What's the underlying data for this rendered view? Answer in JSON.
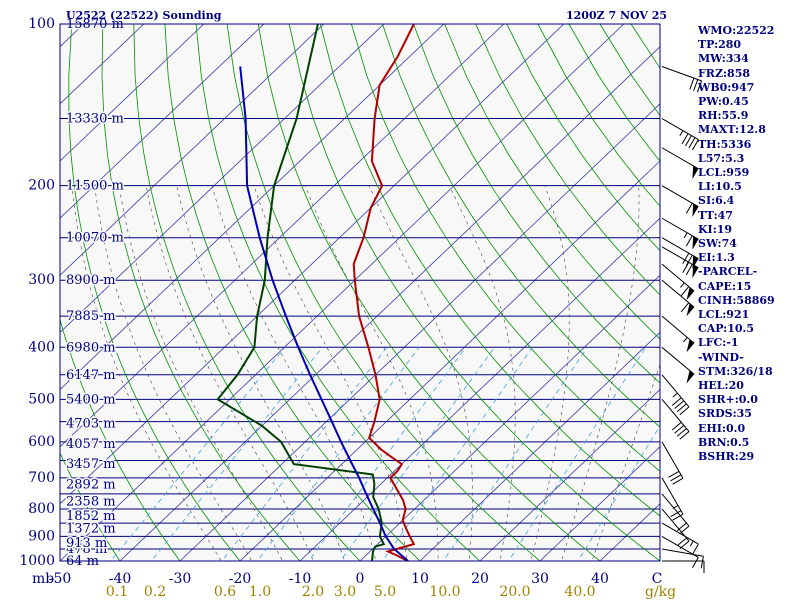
{
  "header": {
    "title": "U2522 (22522) Sounding",
    "valid_time": "1200Z  7 NOV 25"
  },
  "indices": [
    "WMO:22522",
    "TP:280",
    "MW:334",
    "FRZ:858",
    "WB0:947",
    "PW:0.45",
    "RH:55.9",
    "MAXT:12.8",
    "TH:5336",
    "L57:5.3",
    "LCL:959",
    "LI:10.5",
    "SI:6.4",
    "TT:47",
    "KI:19",
    "SW:74",
    "EI:1.3",
    "-PARCEL-",
    "CAPE:15",
    "CINH:58869",
    "LCL:921",
    "CAP:10.5",
    "LFC:-1",
    "-WIND-",
    "STM:326/18",
    "HEL:20",
    "SHR+:0.0",
    "SRDS:35",
    "EHI:0.0",
    "BRN:0.5",
    "BSHR:29"
  ],
  "colors": {
    "background": "#f8f8f8",
    "isobar": "#000080",
    "isotherm": "#3a3aa8",
    "dry_adiabat": "#009000",
    "moist_adiabat": "#404040",
    "mixing_ratio": "#40a0e0",
    "temperature": "#b00000",
    "dewpoint": "#004000",
    "parcel": "#0000b0",
    "wind_barb": "#000000",
    "label": "#000080",
    "mixing_label": "#a08000"
  },
  "chart_data": {
    "type": "skew-t log-p",
    "title": "U2522 (22522) Sounding",
    "xlabel": "C",
    "ylabel": "mb",
    "xlim": [
      -50,
      50
    ],
    "ylim": [
      1000,
      100
    ],
    "x_ticks": [
      -50,
      -40,
      -30,
      -20,
      -10,
      0,
      10,
      20,
      30,
      40
    ],
    "x_tick_labels": [
      "-50",
      "-40",
      "-30",
      "-20",
      "-10",
      "0",
      "10",
      "20",
      "30",
      "40"
    ],
    "x_unit_label": "C",
    "y_axis_unit": "mb",
    "pressure_labels": [
      {
        "p": 1000,
        "label": "1000"
      },
      {
        "p": 900,
        "label": "900"
      },
      {
        "p": 800,
        "label": "800"
      },
      {
        "p": 700,
        "label": "700"
      },
      {
        "p": 600,
        "label": "600"
      },
      {
        "p": 500,
        "label": "500"
      },
      {
        "p": 400,
        "label": "400"
      },
      {
        "p": 300,
        "label": "300"
      },
      {
        "p": 200,
        "label": "200"
      },
      {
        "p": 100,
        "label": "100"
      }
    ],
    "height_labels": [
      {
        "p": 1000,
        "label": "64 m"
      },
      {
        "p": 950,
        "label": "478 m"
      },
      {
        "p": 925,
        "label": "913 m"
      },
      {
        "p": 870,
        "label": "1372 m"
      },
      {
        "p": 825,
        "label": "1852 m"
      },
      {
        "p": 775,
        "label": "2358 m"
      },
      {
        "p": 720,
        "label": "2892 m"
      },
      {
        "p": 660,
        "label": "3457 m"
      },
      {
        "p": 605,
        "label": "4057 m"
      },
      {
        "p": 555,
        "label": "4703 m"
      },
      {
        "p": 500,
        "label": "5400 m"
      },
      {
        "p": 450,
        "label": "6147 m"
      },
      {
        "p": 400,
        "label": "6980 m"
      },
      {
        "p": 350,
        "label": "7885 m"
      },
      {
        "p": 300,
        "label": "8900 m"
      },
      {
        "p": 250,
        "label": "10070 m"
      },
      {
        "p": 200,
        "label": "11500 m"
      },
      {
        "p": 150,
        "label": "13330 m"
      },
      {
        "p": 100,
        "label": "15870 m"
      }
    ],
    "mixing_ratio_labels": [
      "0.1",
      "0.2",
      "0.6",
      "1.0",
      "2.0",
      "3.0",
      "5.0",
      "10.0",
      "20.0",
      "40.0"
    ],
    "mixing_ratio_unit": "g/kg",
    "series": [
      {
        "name": "Temperature",
        "points": [
          [
            1000,
            8
          ],
          [
            975,
            5
          ],
          [
            960,
            3
          ],
          [
            930,
            6
          ],
          [
            900,
            4
          ],
          [
            870,
            2
          ],
          [
            840,
            0
          ],
          [
            800,
            -1.5
          ],
          [
            770,
            -3.5
          ],
          [
            740,
            -6
          ],
          [
            700,
            -9.5
          ],
          [
            680,
            -9.5
          ],
          [
            660,
            -10
          ],
          [
            640,
            -13
          ],
          [
            620,
            -16
          ],
          [
            590,
            -20
          ],
          [
            550,
            -22
          ],
          [
            500,
            -25
          ],
          [
            450,
            -30
          ],
          [
            400,
            -36
          ],
          [
            350,
            -43
          ],
          [
            300,
            -50
          ],
          [
            280,
            -53
          ],
          [
            250,
            -56
          ],
          [
            220,
            -60
          ],
          [
            200,
            -62
          ],
          [
            180,
            -68
          ],
          [
            150,
            -75
          ],
          [
            130,
            -80
          ],
          [
            115,
            -82
          ],
          [
            100,
            -85
          ]
        ]
      },
      {
        "name": "Dewpoint",
        "points": [
          [
            1000,
            2
          ],
          [
            960,
            0.5
          ],
          [
            940,
            0
          ],
          [
            930,
            1
          ],
          [
            900,
            -1
          ],
          [
            850,
            -3
          ],
          [
            800,
            -6
          ],
          [
            760,
            -9
          ],
          [
            720,
            -11
          ],
          [
            690,
            -13
          ],
          [
            660,
            -28
          ],
          [
            600,
            -34
          ],
          [
            560,
            -40
          ],
          [
            500,
            -52
          ],
          [
            450,
            -53
          ],
          [
            400,
            -55
          ],
          [
            350,
            -60
          ],
          [
            300,
            -65
          ],
          [
            250,
            -72
          ],
          [
            200,
            -80
          ],
          [
            150,
            -88
          ],
          [
            100,
            -101
          ]
        ]
      },
      {
        "name": "Parcel",
        "points": [
          [
            1000,
            8
          ],
          [
            950,
            3.6
          ],
          [
            900,
            0
          ],
          [
            850,
            -3.3
          ],
          [
            800,
            -6.9
          ],
          [
            750,
            -10.7
          ],
          [
            700,
            -14.7
          ],
          [
            650,
            -19.2
          ],
          [
            600,
            -24.0
          ],
          [
            550,
            -29.1
          ],
          [
            500,
            -34.7
          ],
          [
            450,
            -40.9
          ],
          [
            400,
            -47.7
          ],
          [
            350,
            -55.2
          ],
          [
            300,
            -63.7
          ],
          [
            250,
            -73.3
          ],
          [
            200,
            -84.5
          ],
          [
            150,
            -96.5
          ],
          [
            120,
            -106.5
          ]
        ]
      }
    ],
    "wind_barbs": [
      {
        "p": 1000,
        "dir": 270,
        "spd": 10
      },
      {
        "p": 950,
        "dir": 280,
        "spd": 10
      },
      {
        "p": 900,
        "dir": 300,
        "spd": 10
      },
      {
        "p": 850,
        "dir": 300,
        "spd": 15
      },
      {
        "p": 800,
        "dir": 320,
        "spd": 20
      },
      {
        "p": 750,
        "dir": 320,
        "spd": 20
      },
      {
        "p": 700,
        "dir": 330,
        "spd": 25
      },
      {
        "p": 600,
        "dir": 330,
        "spd": 30
      },
      {
        "p": 500,
        "dir": 320,
        "spd": 40
      },
      {
        "p": 450,
        "dir": 320,
        "spd": 45
      },
      {
        "p": 400,
        "dir": 310,
        "spd": 50
      },
      {
        "p": 350,
        "dir": 310,
        "spd": 55
      },
      {
        "p": 300,
        "dir": 310,
        "spd": 60
      },
      {
        "p": 280,
        "dir": 310,
        "spd": 65
      },
      {
        "p": 260,
        "dir": 300,
        "spd": 70
      },
      {
        "p": 250,
        "dir": 300,
        "spd": 70
      },
      {
        "p": 230,
        "dir": 300,
        "spd": 65
      },
      {
        "p": 200,
        "dir": 300,
        "spd": 60
      },
      {
        "p": 170,
        "dir": 300,
        "spd": 50
      },
      {
        "p": 150,
        "dir": 300,
        "spd": 45
      },
      {
        "p": 120,
        "dir": 290,
        "spd": 30
      }
    ]
  }
}
